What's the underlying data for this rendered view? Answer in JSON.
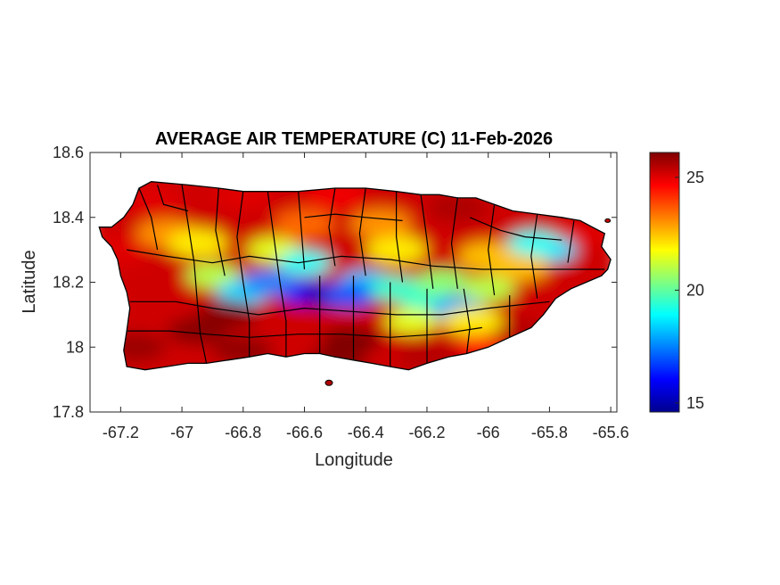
{
  "chart_data": {
    "type": "heatmap",
    "title": "AVERAGE AIR TEMPERATURE (C) 11-Feb-2026",
    "xlabel": "Longitude",
    "ylabel": "Latitude",
    "xlim": [
      -67.3,
      -65.58
    ],
    "ylim": [
      17.8,
      18.6
    ],
    "x_ticks": [
      "-67.2",
      "-67",
      "-66.8",
      "-66.6",
      "-66.4",
      "-66.2",
      "-66",
      "-65.8",
      "-65.6"
    ],
    "x_tick_values": [
      -67.2,
      -67.0,
      -66.8,
      -66.6,
      -66.4,
      -66.2,
      -66.0,
      -65.8,
      -65.6
    ],
    "y_ticks": [
      "18.6",
      "18.4",
      "18.2",
      "18",
      "17.8"
    ],
    "y_tick_values": [
      18.6,
      18.4,
      18.2,
      18.0,
      17.8
    ],
    "colorbar": {
      "colormap": "jet",
      "range": [
        14.6,
        26.1
      ],
      "ticks": [
        "25",
        "20",
        "15"
      ],
      "tick_values": [
        25,
        20,
        15
      ]
    },
    "region_description": "Puerto Rico municipalities; warmest (about 25-26 C) along the southern and northern coasts, coolest (about 15-19 C) along the central mountain ridge near -66.6 longitude, 18.18 latitude",
    "temperature_samples": [
      {
        "lon": -67.15,
        "lat": 18.0,
        "value": 25.8
      },
      {
        "lon": -66.8,
        "lat": 17.99,
        "value": 25.9
      },
      {
        "lon": -66.5,
        "lat": 17.95,
        "value": 26.0
      },
      {
        "lon": -66.2,
        "lat": 17.97,
        "value": 25.5
      },
      {
        "lon": -66.0,
        "lat": 18.0,
        "value": 24.5
      },
      {
        "lon": -65.9,
        "lat": 18.05,
        "value": 25.5
      },
      {
        "lon": -67.1,
        "lat": 18.45,
        "value": 25.0
      },
      {
        "lon": -66.8,
        "lat": 18.47,
        "value": 25.0
      },
      {
        "lon": -66.5,
        "lat": 18.47,
        "value": 24.8
      },
      {
        "lon": -66.1,
        "lat": 18.43,
        "value": 25.6
      },
      {
        "lon": -65.7,
        "lat": 18.35,
        "value": 25.0
      },
      {
        "lon": -67.2,
        "lat": 18.3,
        "value": 25.0
      },
      {
        "lon": -66.9,
        "lat": 18.22,
        "value": 21.0
      },
      {
        "lon": -66.8,
        "lat": 18.17,
        "value": 18.5
      },
      {
        "lon": -66.6,
        "lat": 18.17,
        "value": 16.2
      },
      {
        "lon": -66.52,
        "lat": 18.16,
        "value": 15.2
      },
      {
        "lon": -66.4,
        "lat": 18.2,
        "value": 18.2
      },
      {
        "lon": -66.2,
        "lat": 18.14,
        "value": 19.5
      },
      {
        "lon": -66.1,
        "lat": 18.12,
        "value": 18.0
      },
      {
        "lon": -65.8,
        "lat": 18.3,
        "value": 18.5
      },
      {
        "lon": -66.7,
        "lat": 18.3,
        "value": 21.5
      },
      {
        "lon": -66.3,
        "lat": 18.3,
        "value": 22.0
      },
      {
        "lon": -66.0,
        "lat": 18.28,
        "value": 22.5
      }
    ]
  }
}
